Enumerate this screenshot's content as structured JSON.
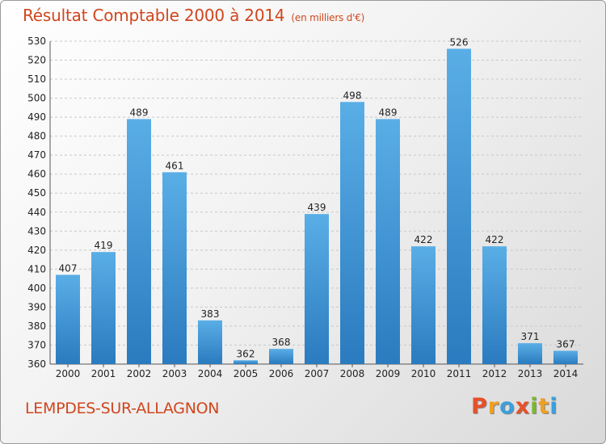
{
  "header": {
    "title": "Résultat Comptable 2000 à 2014",
    "subtitle": "(en milliers d'€)"
  },
  "footer": {
    "commune": "LEMPDES-SUR-ALLAGNON",
    "logo_letters": [
      "P",
      "r",
      "o",
      "x",
      "i",
      "t",
      "i"
    ],
    "logo_colors": [
      "#e8502a",
      "#f0a020",
      "#3aa0dc",
      "#e8502a",
      "#7cb82f",
      "#f0a020",
      "#3aa0dc"
    ]
  },
  "colors": {
    "bar_top": "#5aaee6",
    "bar_bottom": "#2a7bbf",
    "title": "#d0461d"
  },
  "chart_data": {
    "type": "bar",
    "title": "Résultat Comptable 2000 à 2014",
    "subtitle": "(en milliers d'€)",
    "categories": [
      "2000",
      "2001",
      "2002",
      "2003",
      "2004",
      "2005",
      "2006",
      "2007",
      "2008",
      "2009",
      "2010",
      "2011",
      "2012",
      "2013",
      "2014"
    ],
    "values": [
      407,
      419,
      489,
      461,
      383,
      362,
      368,
      439,
      498,
      489,
      422,
      526,
      422,
      371,
      367
    ],
    "ylim": [
      360,
      530
    ],
    "yticks": [
      360,
      370,
      380,
      390,
      400,
      410,
      420,
      430,
      440,
      450,
      460,
      470,
      480,
      490,
      500,
      510,
      520,
      530
    ],
    "grid": true,
    "xlabel": "",
    "ylabel": ""
  }
}
